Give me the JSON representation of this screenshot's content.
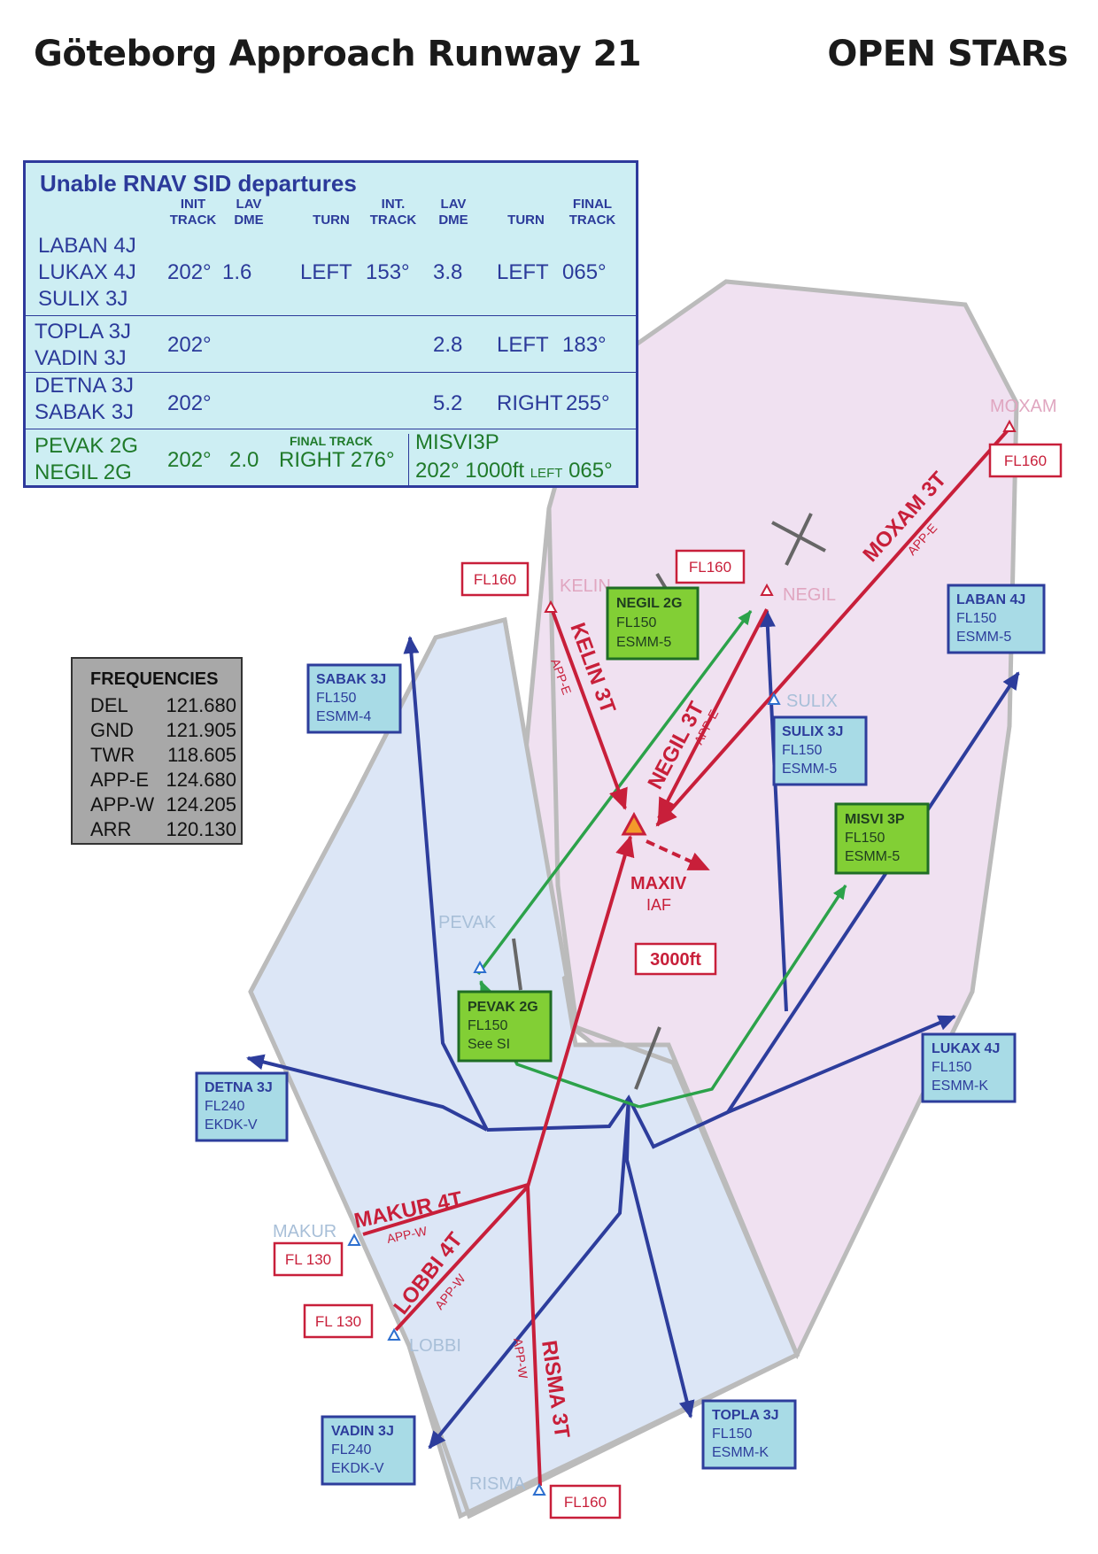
{
  "header": {
    "title": "Göteborg Approach Runway 21",
    "subtitle": "OPEN STARs"
  },
  "colors": {
    "east_sector": "#f0e1f1",
    "west_sector": "#dce6f6",
    "star": "#c81f3a",
    "sid": "#2d3d9c",
    "green_sid": "#2ca24a",
    "box_blue": "#a8dbe6",
    "box_green": "#82cf35"
  },
  "sid_table": {
    "title": "Unable RNAV SID departures",
    "headers": {
      "init_track": [
        "INIT",
        "TRACK"
      ],
      "lav_dme": [
        "LAV",
        "DME"
      ],
      "turn": "TURN",
      "int_track": [
        "INT.",
        "TRACK"
      ],
      "lav_dme2": [
        "LAV",
        "DME"
      ],
      "turn2": "TURN",
      "final_track": [
        "FINAL",
        "TRACK"
      ]
    },
    "rows": [
      {
        "names": [
          "LABAN 4J",
          "LUKAX 4J",
          "SULIX 3J"
        ],
        "init": "202°",
        "dme": "1.6",
        "turn": "LEFT",
        "int": "153°",
        "dme2": "3.8",
        "turn2": "LEFT",
        "final": "065°"
      },
      {
        "names": [
          "TOPLA 3J",
          "VADIN 3J"
        ],
        "init": "202°",
        "dme2": "2.8",
        "turn2": "LEFT",
        "final": "183°"
      },
      {
        "names": [
          "DETNA 3J",
          "SABAK 3J"
        ],
        "init": "202°",
        "dme2": "5.2",
        "turn2": "RIGHT",
        "final": "255°"
      }
    ],
    "green_row": {
      "names": [
        "PEVAK 2G",
        "NEGIL 2G"
      ],
      "init": "202°",
      "dme": "2.0",
      "final_label": "FINAL TRACK",
      "final": "RIGHT 276°",
      "misvi_name": "MISVI3P",
      "misvi_track": "202° 1000ft",
      "misvi_turn": "LEFT",
      "misvi_final": "065°"
    }
  },
  "frequencies": {
    "title": "FREQUENCIES",
    "items": [
      {
        "name": "DEL",
        "value": "121.680"
      },
      {
        "name": "GND",
        "value": "121.905"
      },
      {
        "name": "TWR",
        "value": "118.605"
      },
      {
        "name": "APP-E",
        "value": "124.680"
      },
      {
        "name": "APP-W",
        "value": "124.205"
      },
      {
        "name": "ARR",
        "value": "120.130"
      }
    ]
  },
  "waypoints": {
    "moxam": "MOXAM",
    "kelin": "KELIN",
    "negil": "NEGIL",
    "sulix": "SULIX",
    "pevak": "PEVAK",
    "makur": "MAKUR",
    "lobbi": "LOBBI",
    "risma": "RISMA",
    "maxiv": "MAXIV",
    "iaf": "IAF"
  },
  "fl_labels": {
    "moxam": "FL160",
    "kelin": "FL160",
    "negil": "FL160",
    "makur": "FL 130",
    "lobbi": "FL 130",
    "risma": "FL160"
  },
  "altitude_box": "3000ft",
  "stars": {
    "moxam": {
      "name": "MOXAM 3T",
      "sector": "APP-E"
    },
    "kelin": {
      "name": "KELIN 3T",
      "sector": "APP-E"
    },
    "negil": {
      "name": "NEGIL 3T",
      "sector": "APP-E"
    },
    "makur": {
      "name": "MAKUR 4T",
      "sector": "APP-W"
    },
    "lobbi": {
      "name": "LOBBI 4T",
      "sector": "APP-W"
    },
    "risma": {
      "name": "RISMA 3T",
      "sector": "APP-W"
    }
  },
  "sid_boxes": {
    "laban": {
      "name": "LABAN 4J",
      "fl": "FL150",
      "unit": "ESMM-5"
    },
    "sabak": {
      "name": "SABAK 3J",
      "fl": "FL150",
      "unit": "ESMM-4"
    },
    "sulix": {
      "name": "SULIX 3J",
      "fl": "FL150",
      "unit": "ESMM-5"
    },
    "negil": {
      "name": "NEGIL 2G",
      "fl": "FL150",
      "unit": "ESMM-5"
    },
    "misvi": {
      "name": "MISVI 3P",
      "fl": "FL150",
      "unit": "ESMM-5"
    },
    "pevak": {
      "name": "PEVAK 2G",
      "fl": "FL150",
      "unit": "See SI"
    },
    "lukax": {
      "name": "LUKAX 4J",
      "fl": "FL150",
      "unit": "ESMM-K"
    },
    "detna": {
      "name": "DETNA 3J",
      "fl": "FL240",
      "unit": "EKDK-V"
    },
    "vadin": {
      "name": "VADIN 3J",
      "fl": "FL240",
      "unit": "EKDK-V"
    },
    "topla": {
      "name": "TOPLA 3J",
      "fl": "FL150",
      "unit": "ESMM-K"
    }
  }
}
